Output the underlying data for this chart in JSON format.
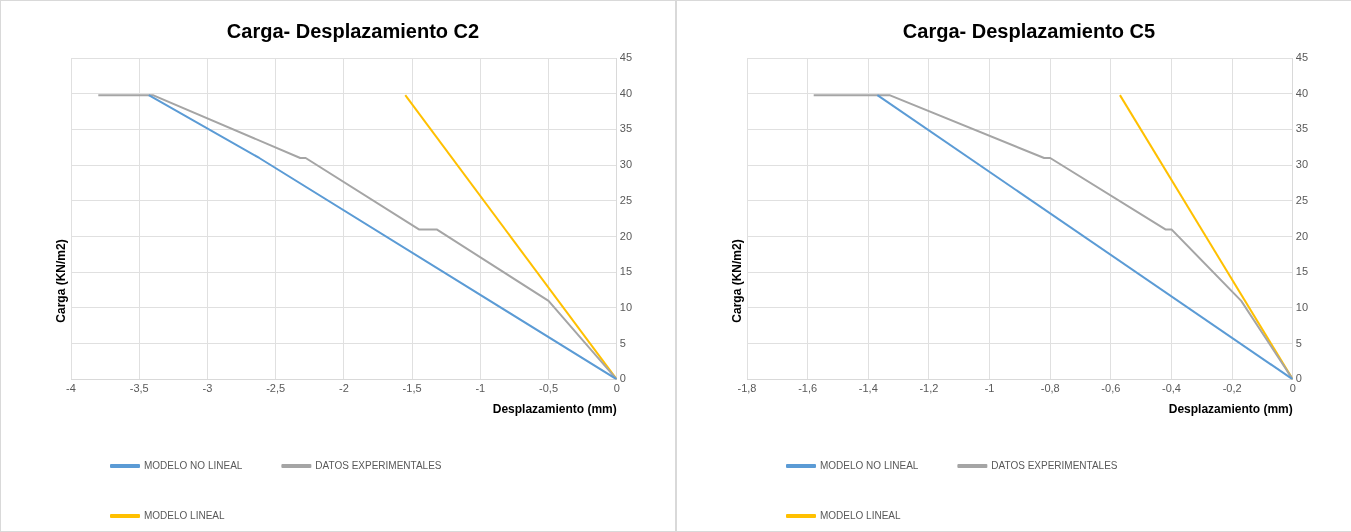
{
  "chart_data": [
    {
      "type": "line",
      "title": "Carga- Desplazamiento C2",
      "xlabel": "Desplazamiento (mm)",
      "ylabel": "Carga (KN/m2)",
      "xlim": [
        -4,
        0
      ],
      "xticks": [
        -4,
        {
          "value": -3.5,
          "label": "-3,5"
        },
        -3,
        {
          "value": -2.5,
          "label": "-2,5"
        },
        -2,
        {
          "value": -1.5,
          "label": "-1,5"
        },
        -1,
        {
          "value": -0.5,
          "label": "-0,5"
        },
        0
      ],
      "ylim": [
        0,
        45
      ],
      "yticks": [
        0,
        5,
        10,
        15,
        20,
        25,
        30,
        35,
        40,
        45
      ],
      "grid": true,
      "legend": "bottom",
      "marker": "none",
      "series": [
        {
          "name": "MODELO NO LINEAL",
          "color": "#5b9bd5",
          "x": [
            0,
            -2.62,
            -3.43
          ],
          "values": [
            0,
            31,
            39.8
          ]
        },
        {
          "name": "DATOS EXPERIMENTALES",
          "color": "#a5a5a5",
          "x": [
            -3.8,
            -3.4,
            -2.32,
            -2.28,
            -1.45,
            -1.32,
            -0.5,
            0
          ],
          "values": [
            39.8,
            39.8,
            31,
            31,
            21,
            21,
            11,
            0
          ]
        },
        {
          "name": "MODELO LINEAL",
          "color": "#ffc000",
          "x": [
            0,
            -1.55
          ],
          "values": [
            0,
            39.8
          ]
        }
      ]
    },
    {
      "type": "line",
      "title": "Carga- Desplazamiento C5",
      "xlabel": "Desplazamiento (mm)",
      "ylabel": "Carga (KN/m2)",
      "xlim": [
        -1.8,
        0
      ],
      "xticks": [
        {
          "value": -1.8,
          "label": "-1,8"
        },
        {
          "value": -1.6,
          "label": "-1,6"
        },
        {
          "value": -1.4,
          "label": "-1,4"
        },
        {
          "value": -1.2,
          "label": "-1,2"
        },
        -1,
        {
          "value": -0.8,
          "label": "-0,8"
        },
        {
          "value": -0.6,
          "label": "-0,6"
        },
        {
          "value": -0.4,
          "label": "-0,4"
        },
        {
          "value": -0.2,
          "label": "-0,2"
        },
        0
      ],
      "ylim": [
        0,
        45
      ],
      "yticks": [
        0,
        5,
        10,
        15,
        20,
        25,
        30,
        35,
        40,
        45
      ],
      "grid": true,
      "legend": "bottom",
      "marker": "none",
      "series": [
        {
          "name": "MODELO NO LINEAL",
          "color": "#5b9bd5",
          "x": [
            0,
            -1.37
          ],
          "values": [
            0,
            39.8
          ]
        },
        {
          "name": "DATOS EXPERIMENTALES",
          "color": "#a5a5a5",
          "x": [
            -1.58,
            -1.33,
            -0.82,
            -0.8,
            -0.42,
            -0.4,
            -0.17,
            0
          ],
          "values": [
            39.8,
            39.8,
            31,
            31,
            21,
            21,
            11,
            0
          ]
        },
        {
          "name": "MODELO LINEAL",
          "color": "#ffc000",
          "x": [
            0,
            -0.57
          ],
          "values": [
            0,
            39.8
          ]
        }
      ]
    }
  ]
}
